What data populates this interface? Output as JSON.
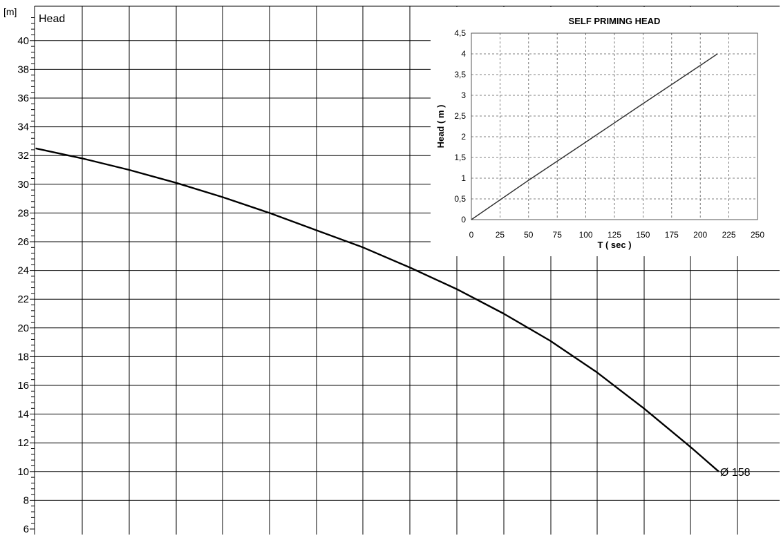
{
  "chart_data": [
    {
      "type": "line",
      "unit_label": "[m]",
      "corner_label": "Head",
      "ylim": [
        6,
        42
      ],
      "y_ticks": [
        "6",
        "8",
        "10",
        "12",
        "14",
        "16",
        "18",
        "20",
        "22",
        "24",
        "26",
        "28",
        "30",
        "32",
        "34",
        "36",
        "38",
        "40"
      ],
      "grid": true,
      "series": [
        {
          "name": "Ø 158",
          "points": [
            [
              0,
              32.5
            ],
            [
              1,
              31.8
            ],
            [
              2,
              31.0
            ],
            [
              3,
              30.1
            ],
            [
              4,
              29.1
            ],
            [
              5,
              28.0
            ],
            [
              6,
              26.8
            ],
            [
              7,
              25.6
            ],
            [
              8,
              24.2
            ],
            [
              9,
              22.7
            ],
            [
              10,
              21.0
            ],
            [
              11,
              19.1
            ],
            [
              12,
              16.9
            ],
            [
              13,
              14.4
            ],
            [
              14,
              11.7
            ],
            [
              14.6,
              10.0
            ]
          ]
        }
      ],
      "curve_label": "Ø 158"
    },
    {
      "type": "line",
      "title": "SELF PRIMING HEAD",
      "xlabel": "T ( sec )",
      "ylabel": "Head ( m )",
      "xlim": [
        0,
        250
      ],
      "ylim": [
        0,
        4.5
      ],
      "x_ticks": [
        "0",
        "25",
        "50",
        "75",
        "100",
        "125",
        "150",
        "175",
        "200",
        "225",
        "250"
      ],
      "y_ticks": [
        "0",
        "0,5",
        "1",
        "1,5",
        "2",
        "2,5",
        "3",
        "3,5",
        "4",
        "4,5"
      ],
      "grid": "dashed",
      "series": [
        {
          "points": [
            [
              0,
              0
            ],
            [
              50,
              0.95
            ],
            [
              100,
              1.87
            ],
            [
              150,
              2.8
            ],
            [
              200,
              3.72
            ],
            [
              215,
              4.0
            ]
          ]
        }
      ]
    }
  ]
}
